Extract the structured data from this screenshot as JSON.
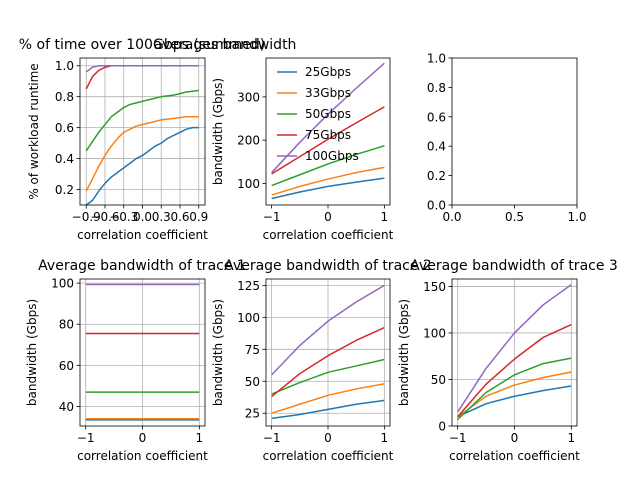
{
  "chart_data": [
    {
      "type": "line",
      "title": "% of time over 100Gbps (summed)",
      "xlabel": "correlation coefficient",
      "ylabel": "% of workload runtime",
      "xlim": [
        -1.0,
        1.0
      ],
      "ylim": [
        0.1,
        1.05
      ],
      "grid": true,
      "xticks": [
        -0.9,
        -0.6,
        -0.3,
        0.0,
        0.3,
        0.6,
        0.9
      ],
      "xtick_labels": [
        "−0.9",
        "−0.6",
        "−0.3",
        "0.0",
        "0.3",
        "0.6",
        "0.9"
      ],
      "yticks": [
        0.2,
        0.4,
        0.6,
        0.8,
        1.0
      ],
      "ytick_labels": [
        "0.2",
        "0.4",
        "0.6",
        "0.8",
        "1.0"
      ],
      "x": [
        -0.9,
        -0.8,
        -0.7,
        -0.6,
        -0.5,
        -0.4,
        -0.3,
        -0.2,
        -0.1,
        0.0,
        0.1,
        0.2,
        0.3,
        0.4,
        0.5,
        0.6,
        0.7,
        0.8,
        0.9
      ],
      "series": [
        {
          "color": "#1f77b4",
          "values": [
            0.1,
            0.13,
            0.19,
            0.24,
            0.28,
            0.31,
            0.34,
            0.37,
            0.4,
            0.42,
            0.45,
            0.48,
            0.5,
            0.53,
            0.55,
            0.57,
            0.59,
            0.6,
            0.6
          ]
        },
        {
          "color": "#ff7f0e",
          "values": [
            0.19,
            0.27,
            0.35,
            0.42,
            0.48,
            0.53,
            0.57,
            0.59,
            0.61,
            0.62,
            0.63,
            0.64,
            0.65,
            0.655,
            0.66,
            0.665,
            0.67,
            0.67,
            0.67
          ]
        },
        {
          "color": "#2ca02c",
          "values": [
            0.45,
            0.51,
            0.57,
            0.62,
            0.67,
            0.7,
            0.73,
            0.75,
            0.76,
            0.77,
            0.78,
            0.79,
            0.8,
            0.805,
            0.81,
            0.82,
            0.83,
            0.835,
            0.84
          ]
        },
        {
          "color": "#d62728",
          "values": [
            0.85,
            0.93,
            0.97,
            0.99,
            1.0,
            1.0,
            1.0,
            1.0,
            1.0,
            1.0,
            1.0,
            1.0,
            1.0,
            1.0,
            1.0,
            1.0,
            1.0,
            1.0,
            1.0
          ]
        },
        {
          "color": "#9467bd",
          "values": [
            0.96,
            0.99,
            1.0,
            1.0,
            1.0,
            1.0,
            1.0,
            1.0,
            1.0,
            1.0,
            1.0,
            1.0,
            1.0,
            1.0,
            1.0,
            1.0,
            1.0,
            1.0,
            1.0
          ]
        }
      ]
    },
    {
      "type": "line",
      "title": "averages bandwidth",
      "xlabel": "correlation coefficient",
      "ylabel": "bandwidth (Gbps)",
      "xlim": [
        -1.1,
        1.1
      ],
      "ylim": [
        50,
        390
      ],
      "grid": false,
      "legend": "upper-left",
      "xticks": [
        -1,
        0,
        1
      ],
      "xtick_labels": [
        "−1",
        "0",
        "1"
      ],
      "yticks": [
        100,
        200,
        300
      ],
      "ytick_labels": [
        "100",
        "200",
        "300"
      ],
      "x": [
        -1.0,
        -0.5,
        0.0,
        0.5,
        1.0
      ],
      "series": [
        {
          "name": "25Gbps",
          "color": "#1f77b4",
          "values": [
            65,
            80,
            93,
            103,
            112
          ]
        },
        {
          "name": "33Gbps",
          "color": "#ff7f0e",
          "values": [
            73,
            93,
            110,
            125,
            137
          ]
        },
        {
          "name": "50Gbps",
          "color": "#2ca02c",
          "values": [
            95,
            120,
            145,
            167,
            187
          ]
        },
        {
          "name": "75Gbps",
          "color": "#d62728",
          "values": [
            122,
            162,
            202,
            240,
            277
          ]
        },
        {
          "name": "100Gbps",
          "color": "#9467bd",
          "values": [
            125,
            195,
            260,
            320,
            378
          ]
        }
      ]
    },
    {
      "type": "line",
      "title": "",
      "xlabel": "",
      "ylabel": "",
      "xlim": [
        0,
        1
      ],
      "ylim": [
        0,
        1
      ],
      "grid": false,
      "xticks": [
        0.0,
        0.5,
        1.0
      ],
      "xtick_labels": [
        "0.0",
        "0.5",
        "1.0"
      ],
      "yticks": [
        0.0,
        0.2,
        0.4,
        0.6,
        0.8,
        1.0
      ],
      "ytick_labels": [
        "0.0",
        "0.2",
        "0.4",
        "0.6",
        "0.8",
        "1.0"
      ],
      "x": [],
      "series": []
    },
    {
      "type": "line",
      "title": "Average bandwidth of trace 1",
      "xlabel": "correlation coefficient",
      "ylabel": "bandwidth (Gbps)",
      "xlim": [
        -1.1,
        1.1
      ],
      "ylim": [
        30.5,
        102
      ],
      "grid": true,
      "xticks": [
        -1,
        0,
        1
      ],
      "xtick_labels": [
        "−1",
        "0",
        "1"
      ],
      "yticks": [
        40,
        60,
        80,
        100
      ],
      "ytick_labels": [
        "40",
        "60",
        "80",
        "100"
      ],
      "x": [
        -1.0,
        1.0
      ],
      "series": [
        {
          "color": "#1f77b4",
          "values": [
            33.5,
            33.5
          ]
        },
        {
          "color": "#ff7f0e",
          "values": [
            34.0,
            34.0
          ]
        },
        {
          "color": "#2ca02c",
          "values": [
            47.0,
            47.0
          ]
        },
        {
          "color": "#d62728",
          "values": [
            75.5,
            75.5
          ]
        },
        {
          "color": "#9467bd",
          "values": [
            99.3,
            99.3
          ]
        }
      ]
    },
    {
      "type": "line",
      "title": "Average bandwidth of trace 2",
      "xlabel": "correlation coefficient",
      "ylabel": "bandwidth (Gbps)",
      "xlim": [
        -1.1,
        1.1
      ],
      "ylim": [
        15,
        130
      ],
      "grid": true,
      "xticks": [
        -1,
        0,
        1
      ],
      "xtick_labels": [
        "−1",
        "0",
        "1"
      ],
      "yticks": [
        25,
        50,
        75,
        100,
        125
      ],
      "ytick_labels": [
        "25",
        "50",
        "75",
        "100",
        "125"
      ],
      "x": [
        -1.0,
        -0.5,
        0.0,
        0.5,
        1.0
      ],
      "series": [
        {
          "color": "#1f77b4",
          "values": [
            21,
            24,
            28,
            32,
            35
          ]
        },
        {
          "color": "#ff7f0e",
          "values": [
            25,
            32,
            39,
            44,
            48
          ]
        },
        {
          "color": "#2ca02c",
          "values": [
            40,
            49,
            57,
            62,
            67
          ]
        },
        {
          "color": "#d62728",
          "values": [
            38,
            56,
            70,
            82,
            92
          ]
        },
        {
          "color": "#9467bd",
          "values": [
            55,
            78,
            97,
            112,
            125
          ]
        }
      ]
    },
    {
      "type": "line",
      "title": "Average bandwidth of trace 3",
      "xlabel": "correlation coefficient",
      "ylabel": "bandwidth (Gbps)",
      "xlim": [
        -1.1,
        1.1
      ],
      "ylim": [
        0,
        158
      ],
      "grid": true,
      "xticks": [
        -1,
        0,
        1
      ],
      "xtick_labels": [
        "−1",
        "0",
        "1"
      ],
      "yticks": [
        0,
        50,
        100,
        150
      ],
      "ytick_labels": [
        "0",
        "50",
        "100",
        "150"
      ],
      "x": [
        -1.0,
        -0.5,
        0.0,
        0.5,
        1.0
      ],
      "series": [
        {
          "color": "#1f77b4",
          "values": [
            10,
            24,
            32,
            38,
            43
          ]
        },
        {
          "color": "#ff7f0e",
          "values": [
            10,
            32,
            44,
            52,
            58
          ]
        },
        {
          "color": "#2ca02c",
          "values": [
            7,
            36,
            55,
            67,
            73
          ]
        },
        {
          "color": "#d62728",
          "values": [
            10,
            45,
            72,
            95,
            109
          ]
        },
        {
          "color": "#9467bd",
          "values": [
            15,
            62,
            100,
            130,
            152
          ]
        }
      ]
    }
  ]
}
